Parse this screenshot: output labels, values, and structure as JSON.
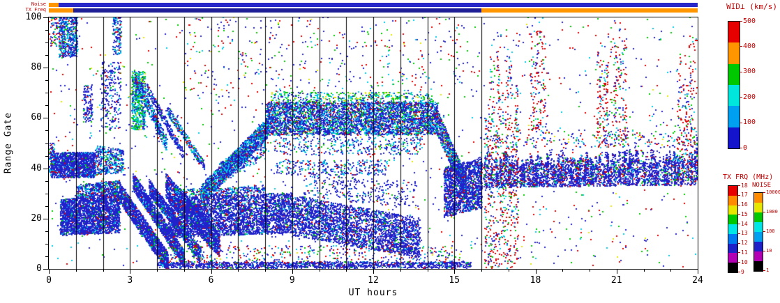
{
  "strips": {
    "noise": {
      "label": "Noise",
      "segments": [
        {
          "t0": 0,
          "t1": 0.35,
          "color": "#ff9600"
        },
        {
          "t0": 0.35,
          "t1": 24,
          "color": "#2828c8"
        }
      ]
    },
    "tx_freq": {
      "label": "TX Freq",
      "segments": [
        {
          "t0": 0,
          "t1": 0.9,
          "color": "#ff9600"
        },
        {
          "t0": 0.9,
          "t1": 16,
          "color": "#1e1e96"
        },
        {
          "t0": 16,
          "t1": 24,
          "color": "#ff9600"
        }
      ]
    }
  },
  "colorbars": {
    "wid": {
      "title": "WID⊥ (km/s)",
      "tick_labels": [
        "0",
        "100",
        "200",
        "300",
        "400",
        "500"
      ],
      "colors_bottom_to_top": [
        "#1414cc",
        "#00a0f0",
        "#00e6dc",
        "#00c800",
        "#ff9600",
        "#e60000"
      ]
    },
    "tx_frq": {
      "title": "TX FRQ (MHz)",
      "tick_labels": [
        "9",
        "10",
        "11",
        "12",
        "13",
        "14",
        "15",
        "16",
        "17",
        "18"
      ],
      "colors_bottom_to_top": [
        "#000000",
        "#b400b4",
        "#2020c8",
        "#0078f0",
        "#00e6e6",
        "#00c800",
        "#e6e600",
        "#ff8c00",
        "#e60000"
      ]
    },
    "noise": {
      "title": "NOISE",
      "tick_labels": [
        "1",
        "10",
        "100",
        "1000",
        "10000"
      ],
      "colors_bottom_to_top": [
        "#000000",
        "#b400b4",
        "#2020c8",
        "#00a0f0",
        "#00e6e6",
        "#00c800",
        "#e6e600",
        "#ff8c00"
      ]
    }
  },
  "chart_data": {
    "type": "scatter",
    "description": "Radar range-time plot of perpendicular spectral width WID⊥ (km/s) versus UT hours; points colored by the WID scale (mostly low/blue values), with hourly scan boundary lines between 01 and 16 UT.",
    "xlabel": "UT hours",
    "ylabel": "Range Gate",
    "xlim": [
      0,
      24
    ],
    "ylim": [
      0,
      100
    ],
    "xticks": [
      0,
      3,
      6,
      9,
      12,
      15,
      18,
      21,
      24
    ],
    "yticks": [
      0,
      20,
      40,
      60,
      80,
      100
    ],
    "x_minor_step": 1,
    "y_minor_step": 5,
    "scan_lines_ut": [
      1,
      2,
      3,
      4,
      5,
      6,
      7,
      8,
      9,
      10,
      11,
      12,
      13,
      14,
      15,
      16
    ],
    "palettes": {
      "dense_blue": [
        [
          "#2222cc",
          86
        ],
        [
          "#00b4e6",
          8
        ],
        [
          "#00c800",
          3
        ],
        [
          "#e00000",
          3
        ]
      ],
      "blue_cyan": [
        [
          "#2222cc",
          58
        ],
        [
          "#00c8e6",
          30
        ],
        [
          "#00c800",
          6
        ],
        [
          "#e00000",
          6
        ]
      ],
      "cyan_green": [
        [
          "#00c8e6",
          38
        ],
        [
          "#00c800",
          32
        ],
        [
          "#2222cc",
          22
        ],
        [
          "#e6e600",
          8
        ]
      ],
      "band_mix": [
        [
          "#2222cc",
          60
        ],
        [
          "#00c8e6",
          24
        ],
        [
          "#00c800",
          8
        ],
        [
          "#e00000",
          6
        ],
        [
          "#e6e600",
          2
        ]
      ],
      "night_blue": [
        [
          "#2222cc",
          80
        ],
        [
          "#e00000",
          8
        ],
        [
          "#00c8e6",
          8
        ],
        [
          "#00c800",
          4
        ]
      ],
      "red_mix": [
        [
          "#e00000",
          50
        ],
        [
          "#2222cc",
          26
        ],
        [
          "#00c800",
          11
        ],
        [
          "#00c8e6",
          13
        ]
      ],
      "speckle": [
        [
          "#2222cc",
          44
        ],
        [
          "#e00000",
          23
        ],
        [
          "#00c800",
          15
        ],
        [
          "#00c8e6",
          13
        ],
        [
          "#e6e600",
          5
        ]
      ]
    },
    "regions": [
      {
        "t0": 0.05,
        "t1": 1.7,
        "b0": 36,
        "b1": 36,
        "u0": 46,
        "u1": 46,
        "n": 1500,
        "p": "dense_blue"
      },
      {
        "t0": 0.0,
        "t1": 0.18,
        "b0": 38,
        "b1": 38,
        "u0": 50,
        "u1": 50,
        "n": 70,
        "p": "blue_cyan"
      },
      {
        "t0": 1.7,
        "t1": 2.75,
        "b0": 37,
        "b1": 38,
        "u0": 49,
        "u1": 47,
        "n": 380,
        "p": "blue_cyan"
      },
      {
        "t0": 0.4,
        "t1": 2.6,
        "b0": 13,
        "b1": 14,
        "u0": 27,
        "u1": 31,
        "n": 2600,
        "p": "dense_blue"
      },
      {
        "t0": 1.0,
        "t1": 2.6,
        "b0": 28,
        "b1": 31,
        "u0": 33,
        "u1": 35,
        "n": 450,
        "p": "blue_cyan"
      },
      {
        "t0": 0.35,
        "t1": 1.05,
        "b0": 84,
        "b1": 84,
        "u0": 100,
        "u1": 100,
        "n": 520,
        "p": "blue_cyan"
      },
      {
        "t0": 0.0,
        "t1": 0.4,
        "b0": 88,
        "b1": 88,
        "u0": 100,
        "u1": 100,
        "n": 80,
        "p": "speckle"
      },
      {
        "t0": 1.9,
        "t1": 2.65,
        "b0": 55,
        "b1": 55,
        "u0": 82,
        "u1": 82,
        "n": 230,
        "p": "dense_blue"
      },
      {
        "t0": 2.35,
        "t1": 2.65,
        "b0": 85,
        "b1": 85,
        "u0": 100,
        "u1": 100,
        "n": 130,
        "p": "blue_cyan"
      },
      {
        "t0": 1.25,
        "t1": 1.6,
        "b0": 58,
        "b1": 58,
        "u0": 73,
        "u1": 73,
        "n": 120,
        "p": "dense_blue"
      },
      {
        "t0": 2.6,
        "t1": 4.4,
        "b0": 26,
        "b1": -2,
        "u0": 34,
        "u1": 6,
        "n": 1500,
        "p": "dense_blue"
      },
      {
        "t0": 3.1,
        "t1": 5.0,
        "b0": 31,
        "b1": 0,
        "u0": 38,
        "u1": 7,
        "n": 1300,
        "p": "dense_blue"
      },
      {
        "t0": 3.7,
        "t1": 5.6,
        "b0": 29,
        "b1": 2,
        "u0": 35,
        "u1": 8,
        "n": 1100,
        "p": "dense_blue"
      },
      {
        "t0": 4.3,
        "t1": 6.3,
        "b0": 28,
        "b1": 4,
        "u0": 38,
        "u1": 14,
        "n": 1500,
        "p": "dense_blue"
      },
      {
        "t0": 3.05,
        "t1": 3.55,
        "b0": 55,
        "b1": 55,
        "u0": 78,
        "u1": 78,
        "n": 550,
        "p": "cyan_green"
      },
      {
        "t0": 3.15,
        "t1": 4.35,
        "b0": 73,
        "b1": 46,
        "u0": 79,
        "u1": 52,
        "n": 420,
        "p": "blue_cyan"
      },
      {
        "t0": 3.6,
        "t1": 4.95,
        "b0": 70,
        "b1": 43,
        "u0": 74,
        "u1": 47,
        "n": 260,
        "p": "dense_blue"
      },
      {
        "t0": 4.3,
        "t1": 5.75,
        "b0": 62,
        "b1": 38,
        "u0": 66,
        "u1": 42,
        "n": 300,
        "p": "blue_cyan"
      },
      {
        "t0": 4.0,
        "t1": 15.6,
        "b0": 0,
        "b1": 0,
        "u0": 2.5,
        "u1": 2.5,
        "n": 1400,
        "p": "dense_blue"
      },
      {
        "t0": 4.0,
        "t1": 15.3,
        "b0": 2,
        "b1": 2,
        "u0": 9,
        "u1": 9,
        "n": 420,
        "p": "speckle"
      },
      {
        "t0": 4.4,
        "t1": 9.0,
        "b0": 12,
        "b1": 14,
        "u0": 28,
        "u1": 30,
        "n": 3400,
        "p": "dense_blue"
      },
      {
        "t0": 9.0,
        "t1": 13.7,
        "b0": 13,
        "b1": 4,
        "u0": 29,
        "u1": 20,
        "n": 2800,
        "p": "dense_blue"
      },
      {
        "t0": 4.5,
        "t1": 8.0,
        "b0": 28,
        "b1": 30,
        "u0": 31,
        "u1": 33,
        "n": 320,
        "p": "blue_cyan"
      },
      {
        "t0": 5.6,
        "t1": 8.1,
        "b0": 25,
        "b1": 52,
        "u0": 33,
        "u1": 60,
        "n": 1700,
        "p": "blue_cyan"
      },
      {
        "t0": 8.0,
        "t1": 14.35,
        "b0": 53,
        "b1": 53,
        "u0": 66,
        "u1": 66,
        "n": 4200,
        "p": "band_mix"
      },
      {
        "t0": 8.2,
        "t1": 14.2,
        "b0": 66,
        "b1": 66,
        "u0": 70,
        "u1": 70,
        "n": 380,
        "p": "cyan_green"
      },
      {
        "t0": 8.3,
        "t1": 13.8,
        "b0": 45,
        "b1": 45,
        "u0": 53,
        "u1": 53,
        "n": 350,
        "p": "blue_cyan"
      },
      {
        "t0": 8.4,
        "t1": 12.6,
        "b0": 37,
        "b1": 37,
        "u0": 43,
        "u1": 43,
        "n": 300,
        "p": "blue_cyan"
      },
      {
        "t0": 9.4,
        "t1": 13.6,
        "b0": 28,
        "b1": 24,
        "u0": 38,
        "u1": 34,
        "n": 280,
        "p": "dense_blue"
      },
      {
        "t0": 14.3,
        "t1": 15.45,
        "b0": 54,
        "b1": 26,
        "u0": 64,
        "u1": 36,
        "n": 1000,
        "p": "band_mix"
      },
      {
        "t0": 14.6,
        "t1": 16.0,
        "b0": 20,
        "b1": 24,
        "u0": 40,
        "u1": 44,
        "n": 1500,
        "p": "dense_blue"
      },
      {
        "t0": 16.05,
        "t1": 24,
        "b0": 32,
        "b1": 33,
        "u0": 47,
        "u1": 48,
        "n": 6500,
        "p": "night_blue",
        "s": 1
      },
      {
        "t0": 16.05,
        "t1": 24,
        "b0": 48,
        "b1": 48,
        "u0": 58,
        "u1": 56,
        "n": 450,
        "p": "speckle",
        "s": 1
      },
      {
        "t0": 16.1,
        "t1": 17.35,
        "b0": 0,
        "b1": 0,
        "u0": 100,
        "u1": 100,
        "n": 1000,
        "p": "red_mix",
        "s": 1
      },
      {
        "t0": 20.25,
        "t1": 21.35,
        "b0": 48,
        "b1": 48,
        "u0": 100,
        "u1": 100,
        "n": 480,
        "p": "red_mix",
        "s": 1
      },
      {
        "t0": 23.2,
        "t1": 23.95,
        "b0": 35,
        "b1": 35,
        "u0": 98,
        "u1": 98,
        "n": 380,
        "p": "red_mix",
        "s": 1
      },
      {
        "t0": 17.75,
        "t1": 18.35,
        "b0": 55,
        "b1": 55,
        "u0": 95,
        "u1": 95,
        "n": 140,
        "p": "red_mix"
      },
      {
        "t0": 0,
        "t1": 24,
        "b0": 0,
        "b1": 0,
        "u0": 100,
        "u1": 100,
        "n": 1300,
        "p": "speckle"
      },
      {
        "t0": 5.0,
        "t1": 15.5,
        "b0": 68,
        "b1": 68,
        "u0": 100,
        "u1": 100,
        "n": 260,
        "p": "speckle"
      },
      {
        "t0": 6.3,
        "t1": 8.0,
        "b0": 33,
        "b1": 45,
        "u0": 42,
        "u1": 52,
        "n": 380,
        "p": "blue_cyan"
      }
    ]
  }
}
